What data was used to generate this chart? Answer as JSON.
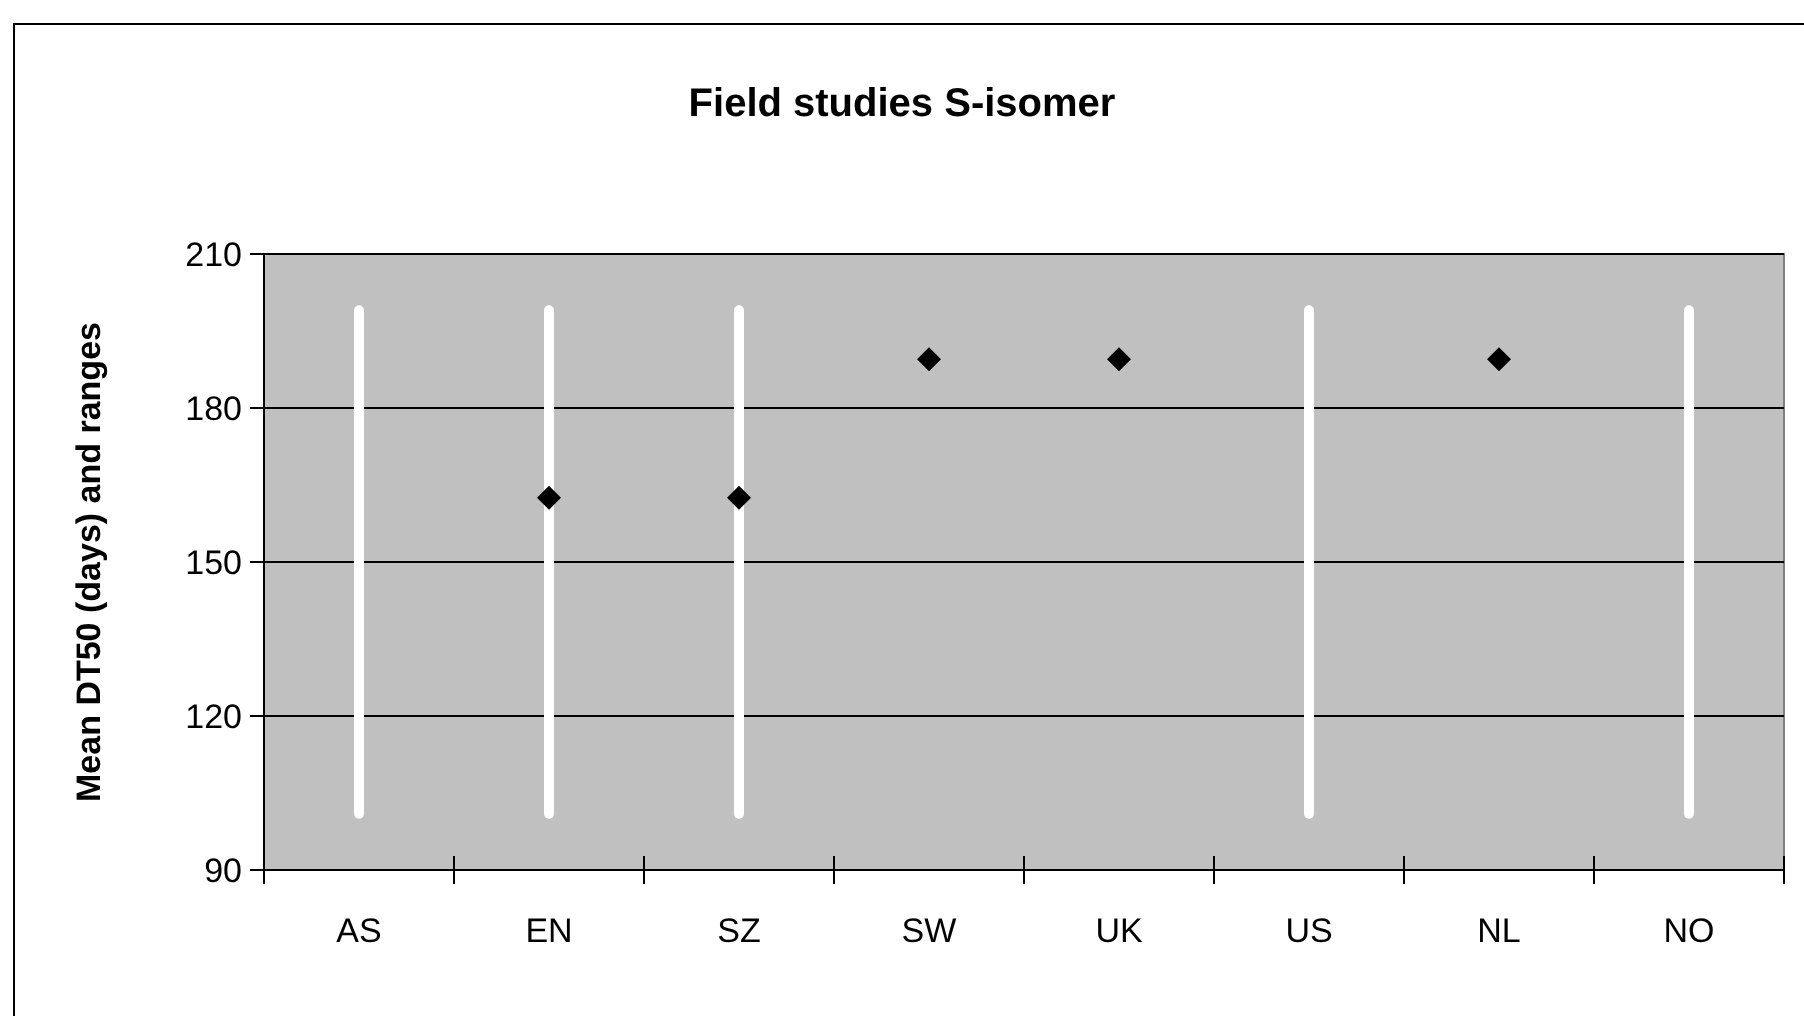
{
  "chart_data": {
    "type": "bar",
    "title": "Field studies S-isomer",
    "ylabel": "Mean DT50 (days) and ranges",
    "categories": [
      "AS",
      "EN",
      "SZ",
      "SW",
      "UK",
      "US",
      "NL",
      "NO"
    ],
    "series": [
      {
        "type": "bar",
        "color": "#ffffff",
        "base": [
          100,
          100,
          100,
          null,
          null,
          100,
          null,
          100
        ],
        "values": [
          100,
          100,
          100,
          null,
          null,
          100,
          null,
          100
        ]
      },
      {
        "type": "scatter",
        "color": "#000000",
        "marker": "diamond",
        "values": [
          null,
          162.5,
          162.5,
          189.5,
          189.5,
          null,
          189.5,
          null
        ]
      }
    ],
    "ylim": [
      90,
      210
    ],
    "yticks": [
      90,
      120,
      150,
      180,
      210
    ],
    "grid": "y"
  }
}
